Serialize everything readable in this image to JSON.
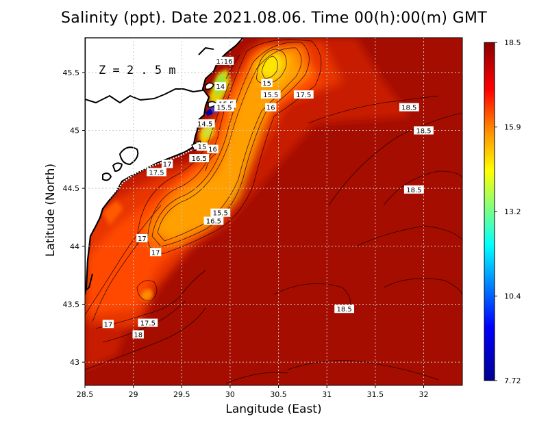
{
  "title": "Salinity (ppt). Date 2021.08.06. Time 00(h):00(m) GMT",
  "depth_label": "Z = 2.5 m",
  "axes": {
    "xlabel": "Langitude (East)",
    "ylabel": "Latitude (North)",
    "xlim": [
      28.5,
      32.4
    ],
    "ylim": [
      42.8,
      45.8
    ],
    "xticks": [
      "28.5",
      "29",
      "29.5",
      "30",
      "30.5",
      "31",
      "31.5",
      "32"
    ],
    "yticks": [
      "43",
      "43.5",
      "44",
      "44.5",
      "45",
      "45.5"
    ],
    "grid": "dotted"
  },
  "colorbar": {
    "ticks": [
      "18.5",
      "15.9",
      "13.2",
      "10.4",
      "7.72"
    ],
    "min": 7.72,
    "max": 18.5,
    "colors": [
      "#00008f",
      "#0000ff",
      "#00ffff",
      "#ffff00",
      "#ff8c00",
      "#ff0000",
      "#8b0000"
    ]
  },
  "contour_labels": [
    {
      "text": "17",
      "lon": 29.9,
      "lat": 45.6
    },
    {
      "text": "16",
      "lon": 29.98,
      "lat": 45.6
    },
    {
      "text": "14",
      "lon": 29.9,
      "lat": 45.38
    },
    {
      "text": "15",
      "lon": 30.38,
      "lat": 45.41
    },
    {
      "text": "15.5",
      "lon": 30.42,
      "lat": 45.31
    },
    {
      "text": "16",
      "lon": 30.42,
      "lat": 45.2
    },
    {
      "text": "17.5",
      "lon": 30.76,
      "lat": 45.31
    },
    {
      "text": "15.5",
      "lon": 29.96,
      "lat": 45.23
    },
    {
      "text": "15.5",
      "lon": 29.94,
      "lat": 45.2
    },
    {
      "text": "18.5",
      "lon": 31.85,
      "lat": 45.2
    },
    {
      "text": "18.5",
      "lon": 32.0,
      "lat": 45.0
    },
    {
      "text": "14.5",
      "lon": 29.74,
      "lat": 45.06
    },
    {
      "text": "15",
      "lon": 29.71,
      "lat": 44.86
    },
    {
      "text": "16",
      "lon": 29.82,
      "lat": 44.84
    },
    {
      "text": "16.5",
      "lon": 29.68,
      "lat": 44.76
    },
    {
      "text": "17",
      "lon": 29.35,
      "lat": 44.71
    },
    {
      "text": "17.5",
      "lon": 29.24,
      "lat": 44.64
    },
    {
      "text": "18.5",
      "lon": 31.9,
      "lat": 44.49
    },
    {
      "text": "15.5",
      "lon": 29.9,
      "lat": 44.29
    },
    {
      "text": "16.5",
      "lon": 29.83,
      "lat": 44.22
    },
    {
      "text": "17",
      "lon": 29.09,
      "lat": 44.07
    },
    {
      "text": "17",
      "lon": 29.23,
      "lat": 43.95
    },
    {
      "text": "18.5",
      "lon": 31.18,
      "lat": 43.46
    },
    {
      "text": "17",
      "lon": 28.74,
      "lat": 43.33
    },
    {
      "text": "17.5",
      "lon": 29.15,
      "lat": 43.34
    },
    {
      "text": "18",
      "lon": 29.05,
      "lat": 43.24
    }
  ]
}
